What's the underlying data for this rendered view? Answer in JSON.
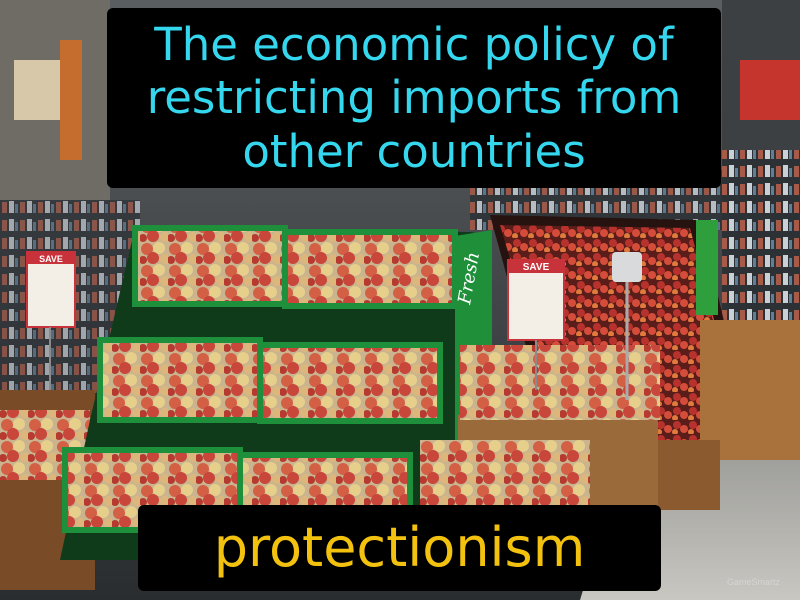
{
  "definition": "The economic policy of restricting imports from other countries",
  "term": "protectionism",
  "photo": {
    "sign_left": "SAVE",
    "sign_right": "SAVE",
    "fresh_label": "Fresh"
  },
  "watermark": "GameSmartz",
  "colors": {
    "definition_text": "#35d7ef",
    "term_text": "#f3c20f",
    "caption_background": "#000000"
  }
}
